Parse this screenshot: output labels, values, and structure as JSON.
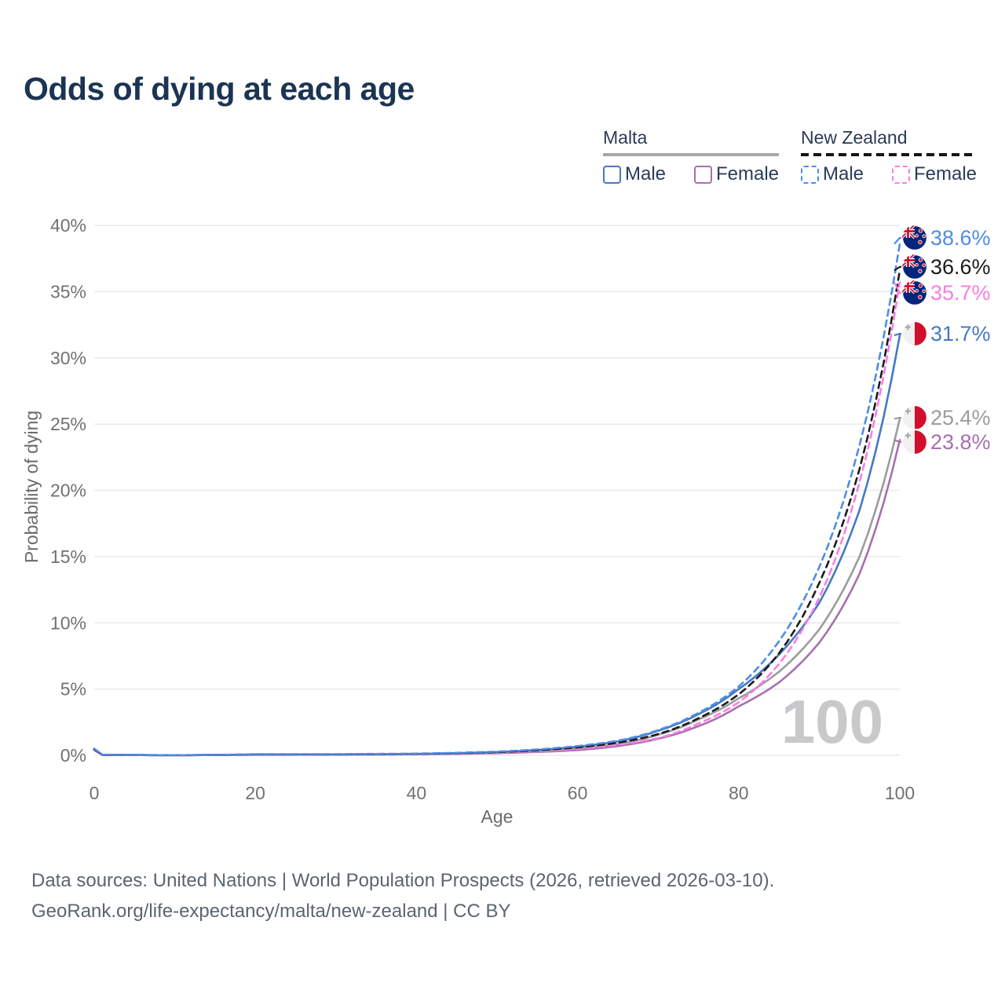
{
  "title": "Odds of dying at each age",
  "legend": {
    "groups": [
      {
        "country": "Malta",
        "line_style": "solid",
        "items": [
          {
            "label": "Male",
            "color": "#4579c2"
          },
          {
            "label": "Female",
            "color": "#a76fb0"
          }
        ]
      },
      {
        "country": "New Zealand",
        "line_style": "dashed",
        "items": [
          {
            "label": "Male",
            "color": "#4e8de8"
          },
          {
            "label": "Female",
            "color": "#f97ee3"
          }
        ]
      }
    ]
  },
  "chart_data": {
    "type": "line",
    "title": "Odds of dying at each age",
    "xlabel": "Age",
    "ylabel": "Probability of dying",
    "xlim": [
      0,
      100
    ],
    "ylim": [
      0,
      40
    ],
    "grid": "horizontal",
    "legend_position": "top-right",
    "age_indicator": "100",
    "xticks": [
      {
        "value": 0,
        "label": "0"
      },
      {
        "value": 20,
        "label": "20"
      },
      {
        "value": 40,
        "label": "40"
      },
      {
        "value": 60,
        "label": "60"
      },
      {
        "value": 80,
        "label": "80"
      },
      {
        "value": 100,
        "label": "100"
      }
    ],
    "yticks": [
      {
        "value": 0,
        "label": "0%"
      },
      {
        "value": 5,
        "label": "5%"
      },
      {
        "value": 10,
        "label": "10%"
      },
      {
        "value": 15,
        "label": "15%"
      },
      {
        "value": 20,
        "label": "20%"
      },
      {
        "value": 25,
        "label": "25%"
      },
      {
        "value": 30,
        "label": "30%"
      },
      {
        "value": 35,
        "label": "35%"
      },
      {
        "value": 40,
        "label": "40%"
      }
    ],
    "x": [
      0,
      1,
      10,
      20,
      30,
      40,
      50,
      60,
      65,
      70,
      75,
      80,
      85,
      90,
      95,
      100
    ],
    "series": [
      {
        "name": "New Zealand Male",
        "country": "New Zealand",
        "sex": "male",
        "line": "dashed",
        "color": "#4e8de8",
        "flag": "new-zealand-flag-icon",
        "end_label": "38.6%",
        "values": [
          0.5,
          0.04,
          0.01,
          0.09,
          0.09,
          0.13,
          0.28,
          0.7,
          1.1,
          1.9,
          3.2,
          5.2,
          8.6,
          14.2,
          23.4,
          38.6
        ]
      },
      {
        "name": "New Zealand",
        "country": "New Zealand",
        "sex": "both",
        "line": "dashed",
        "color": "#1c1c1c",
        "flag": "new-zealand-flag-icon",
        "end_label": "36.6%",
        "values": [
          0.45,
          0.03,
          0.01,
          0.07,
          0.07,
          0.11,
          0.24,
          0.6,
          0.95,
          1.6,
          2.8,
          4.6,
          7.7,
          13.0,
          21.6,
          36.6
        ]
      },
      {
        "name": "New Zealand Female",
        "country": "New Zealand",
        "sex": "female",
        "line": "dashed",
        "color": "#f97ee3",
        "flag": "new-zealand-flag-icon",
        "end_label": "35.7%",
        "values": [
          0.4,
          0.03,
          0.01,
          0.05,
          0.05,
          0.09,
          0.2,
          0.5,
          0.8,
          1.3,
          2.4,
          4.0,
          6.9,
          11.9,
          20.6,
          35.7
        ]
      },
      {
        "name": "Malta Male",
        "country": "Malta",
        "sex": "male",
        "line": "solid",
        "color": "#4579c2",
        "flag": "malta-flag-icon",
        "end_label": "31.7%",
        "values": [
          0.5,
          0.04,
          0.01,
          0.07,
          0.07,
          0.11,
          0.25,
          0.65,
          1.05,
          1.85,
          3.1,
          5.0,
          7.6,
          11.5,
          18.5,
          31.7
        ]
      },
      {
        "name": "Malta",
        "country": "Malta",
        "sex": "both",
        "line": "solid",
        "color": "#9c9ca0",
        "flag": "malta-flag-icon",
        "end_label": "25.4%",
        "values": [
          0.45,
          0.03,
          0.01,
          0.05,
          0.06,
          0.09,
          0.2,
          0.5,
          0.85,
          1.55,
          2.7,
          4.3,
          6.3,
          9.5,
          15.0,
          25.4
        ]
      },
      {
        "name": "Malta Female",
        "country": "Malta",
        "sex": "female",
        "line": "solid",
        "color": "#a76fb0",
        "flag": "malta-flag-icon",
        "end_label": "23.8%",
        "values": [
          0.4,
          0.03,
          0.01,
          0.04,
          0.05,
          0.08,
          0.16,
          0.4,
          0.7,
          1.25,
          2.2,
          3.7,
          5.5,
          8.5,
          13.7,
          23.8
        ]
      }
    ]
  },
  "footer": {
    "line1": "Data sources: United Nations | World Population Prospects (2026, retrieved 2026-03-10).",
    "line2": "GeoRank.org/life-expectancy/malta/new-zealand | CC BY"
  }
}
